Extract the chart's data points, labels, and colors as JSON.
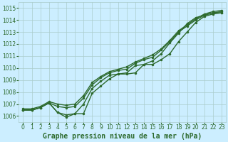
{
  "title": "Graphe pression niveau de la mer (hPa)",
  "bg_color": "#cceeff",
  "grid_color": "#aacccc",
  "line_color": "#2d6a2d",
  "text_color": "#2d6a2d",
  "xlim": [
    -0.5,
    23.5
  ],
  "ylim": [
    1005.5,
    1015.5
  ],
  "yticks": [
    1006,
    1007,
    1008,
    1009,
    1010,
    1011,
    1012,
    1013,
    1014,
    1015
  ],
  "xticks": [
    0,
    1,
    2,
    3,
    4,
    5,
    6,
    7,
    8,
    9,
    10,
    11,
    12,
    13,
    14,
    15,
    16,
    17,
    18,
    19,
    20,
    21,
    22,
    23
  ],
  "line1": [
    1006.5,
    1006.5,
    1006.7,
    1007.1,
    1006.3,
    1005.9,
    1006.2,
    1006.2,
    1007.9,
    1008.5,
    1009.1,
    1009.5,
    1009.5,
    1009.6,
    1010.3,
    1010.3,
    1010.7,
    1011.2,
    1012.2,
    1013.0,
    1013.8,
    1014.3,
    1014.5,
    1014.6
  ],
  "line2": [
    1006.5,
    1006.5,
    1006.7,
    1007.1,
    1006.3,
    1006.1,
    1006.2,
    1007.0,
    1008.3,
    1008.9,
    1009.4,
    1009.5,
    1009.6,
    1010.2,
    1010.3,
    1010.6,
    1011.2,
    1012.1,
    1012.9,
    1013.7,
    1014.2,
    1014.4,
    1014.6,
    1014.6
  ],
  "line3": [
    1006.5,
    1006.5,
    1006.7,
    1007.1,
    1006.8,
    1006.7,
    1006.8,
    1007.5,
    1008.6,
    1009.2,
    1009.6,
    1009.8,
    1009.9,
    1010.4,
    1010.7,
    1010.9,
    1011.5,
    1012.2,
    1013.0,
    1013.5,
    1014.0,
    1014.4,
    1014.6,
    1014.7
  ],
  "line4": [
    1006.6,
    1006.6,
    1006.8,
    1007.2,
    1007.0,
    1006.9,
    1007.0,
    1007.7,
    1008.8,
    1009.3,
    1009.7,
    1009.9,
    1010.1,
    1010.5,
    1010.8,
    1011.1,
    1011.6,
    1012.3,
    1013.1,
    1013.6,
    1014.1,
    1014.5,
    1014.7,
    1014.8
  ],
  "marker_size": 2.5,
  "linewidth": 1.0,
  "xlabel_fontsize": 7,
  "tick_fontsize": 5.5
}
